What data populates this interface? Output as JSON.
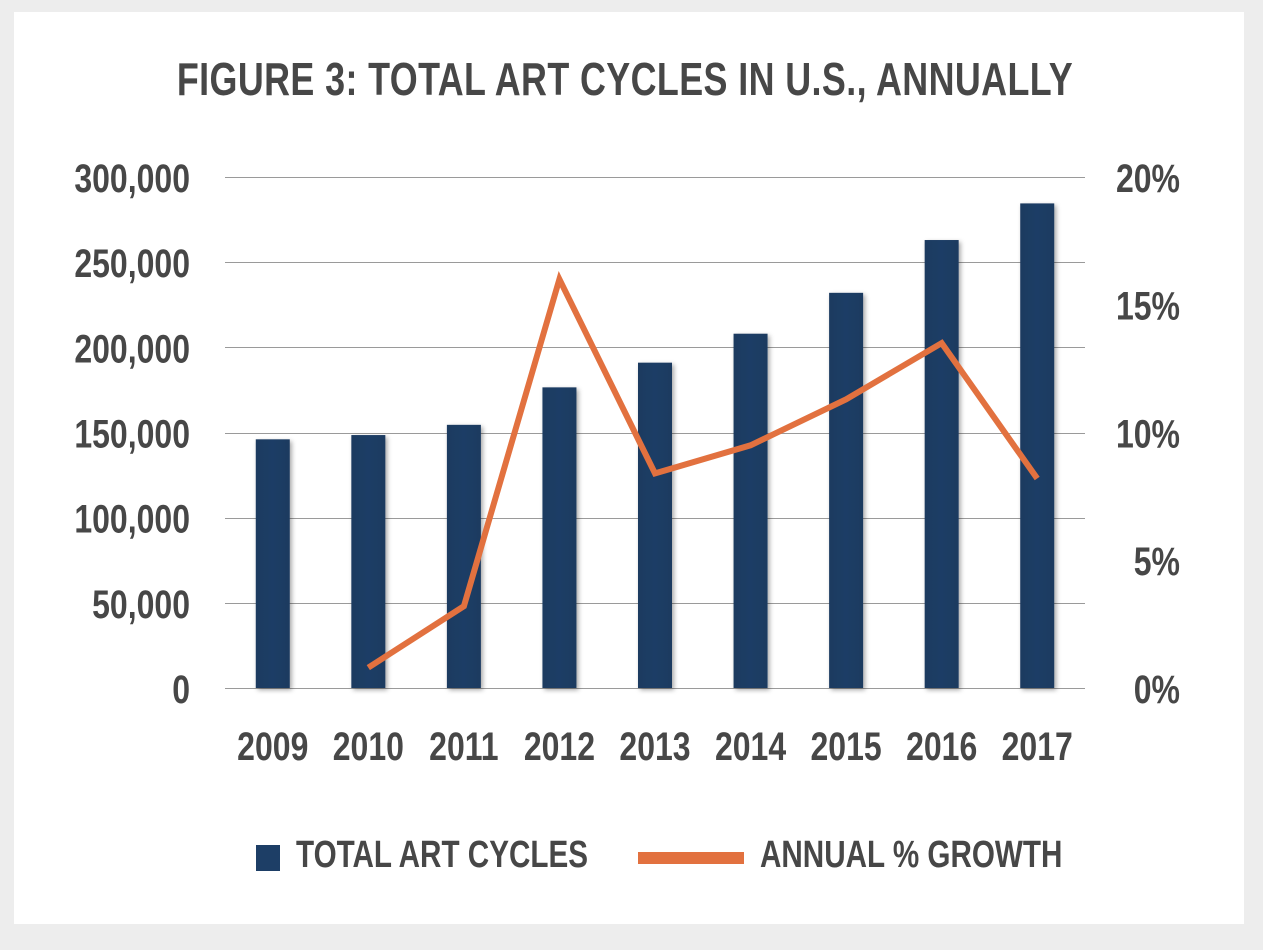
{
  "chart_data": {
    "type": "bar",
    "title": "FIGURE 3: TOTAL ART CYCLES IN U.S., ANNUALLY",
    "categories": [
      "2009",
      "2010",
      "2011",
      "2012",
      "2013",
      "2014",
      "2015",
      "2016",
      "2017"
    ],
    "series": [
      {
        "name": "TOTAL ART CYCLES",
        "type": "bar",
        "axis": "left",
        "color": "#1d3e66",
        "values": [
          146000,
          148500,
          154500,
          176500,
          191000,
          208000,
          232000,
          263000,
          284500
        ]
      },
      {
        "name": "ANNUAL % GROWTH",
        "type": "line",
        "axis": "right",
        "color": "#e2713f",
        "values": [
          null,
          0.8,
          3.2,
          16.0,
          8.4,
          9.5,
          11.3,
          13.5,
          8.2
        ]
      }
    ],
    "y_left": {
      "ylim": [
        0,
        300000
      ],
      "ticks": [
        0,
        50000,
        100000,
        150000,
        200000,
        250000,
        300000
      ],
      "tick_labels": [
        "0",
        "50,000",
        "100,000",
        "150,000",
        "200,000",
        "250,000",
        "300,000"
      ]
    },
    "y_right": {
      "ylim": [
        0,
        20
      ],
      "ticks": [
        0,
        5,
        10,
        15,
        20
      ],
      "tick_labels": [
        "0%",
        "5%",
        "10%",
        "15%",
        "20%"
      ]
    },
    "grid": true,
    "legend_position": "bottom"
  }
}
